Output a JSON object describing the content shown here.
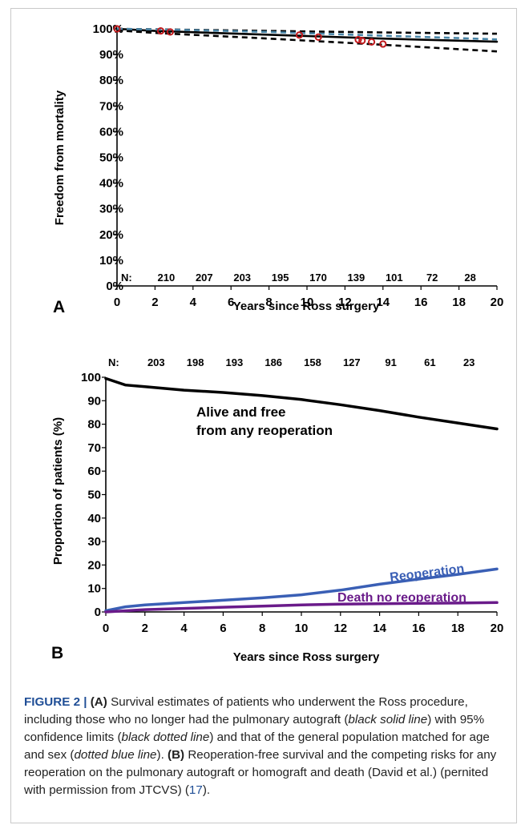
{
  "chart_data": [
    {
      "type": "line",
      "panel_label": "A",
      "xlabel": "Years since Ross surgery",
      "ylabel": "Freedom from mortality",
      "xlim": [
        0,
        20
      ],
      "ylim": [
        0,
        100
      ],
      "x_ticks": [
        "0",
        "2",
        "4",
        "6",
        "8",
        "10",
        "12",
        "14",
        "16",
        "18",
        "20"
      ],
      "y_ticks": [
        "0%",
        "10%",
        "20%",
        "30%",
        "40%",
        "50%",
        "60%",
        "70%",
        "80%",
        "90%",
        "100%"
      ],
      "at_risk_label": "N:",
      "at_risk": [
        {
          "x": 2,
          "n": "210"
        },
        {
          "x": 4,
          "n": "207"
        },
        {
          "x": 6,
          "n": "203"
        },
        {
          "x": 8,
          "n": "195"
        },
        {
          "x": 10,
          "n": "170"
        },
        {
          "x": 12,
          "n": "139"
        },
        {
          "x": 14,
          "n": "101"
        },
        {
          "x": 16,
          "n": "72"
        },
        {
          "x": 18,
          "n": "28"
        }
      ],
      "series": [
        {
          "style": "black-solid",
          "color": "#000000",
          "points": [
            [
              0,
              100
            ],
            [
              2,
              99.2
            ],
            [
              6,
              98.2
            ],
            [
              10,
              97.2
            ],
            [
              14,
              96.2
            ],
            [
              20,
              95.0
            ]
          ]
        },
        {
          "style": "black-dotted-upper",
          "color": "#000000",
          "points": [
            [
              0,
              100
            ],
            [
              2,
              99.8
            ],
            [
              8,
              99.2
            ],
            [
              14,
              98.6
            ],
            [
              20,
              98.1
            ]
          ]
        },
        {
          "style": "black-dotted-lower",
          "color": "#000000",
          "points": [
            [
              0,
              99.4
            ],
            [
              2,
              98.4
            ],
            [
              8,
              96.2
            ],
            [
              14,
              93.8
            ],
            [
              20,
              91.2
            ]
          ]
        },
        {
          "style": "blue-dotted",
          "color": "#4a86a8",
          "points": [
            [
              0,
              100
            ],
            [
              4,
              99.5
            ],
            [
              8,
              98.8
            ],
            [
              12,
              97.8
            ],
            [
              16,
              96.9
            ],
            [
              20,
              95.9
            ]
          ]
        }
      ],
      "markers": [
        [
          0,
          100
        ],
        [
          2.3,
          99.2
        ],
        [
          2.8,
          98.8
        ],
        [
          9.6,
          97.6
        ],
        [
          10.6,
          96.8
        ],
        [
          12.7,
          95.8
        ],
        [
          12.9,
          95.4
        ],
        [
          13.4,
          94.9
        ],
        [
          14.0,
          94.1
        ]
      ],
      "marker_color": "#c0191c"
    },
    {
      "type": "line",
      "panel_label": "B",
      "xlabel": "Years since Ross surgery",
      "ylabel": "Proportion of patients (%)",
      "xlim": [
        0,
        20
      ],
      "ylim": [
        0,
        100
      ],
      "x_ticks": [
        "0",
        "2",
        "4",
        "6",
        "8",
        "10",
        "12",
        "14",
        "16",
        "18",
        "20"
      ],
      "y_ticks": [
        "0",
        "10",
        "20",
        "30",
        "40",
        "50",
        "60",
        "70",
        "80",
        "90",
        "100"
      ],
      "at_risk_label": "N:",
      "at_risk": [
        {
          "x": 2,
          "n": "203"
        },
        {
          "x": 4,
          "n": "198"
        },
        {
          "x": 6,
          "n": "193"
        },
        {
          "x": 8,
          "n": "186"
        },
        {
          "x": 10,
          "n": "158"
        },
        {
          "x": 12,
          "n": "127"
        },
        {
          "x": 14,
          "n": "91"
        },
        {
          "x": 16,
          "n": "61"
        },
        {
          "x": 18,
          "n": "23"
        }
      ],
      "series": [
        {
          "name": "Alive and free from any reoperation",
          "color": "#000000",
          "points": [
            [
              0,
              99.5
            ],
            [
              1,
              96.7
            ],
            [
              2,
              96
            ],
            [
              4,
              94.5
            ],
            [
              6,
              93.5
            ],
            [
              8,
              92.2
            ],
            [
              10,
              90.5
            ],
            [
              12,
              88.3
            ],
            [
              14,
              85.8
            ],
            [
              16,
              83
            ],
            [
              18,
              80.5
            ],
            [
              20,
              78
            ]
          ]
        },
        {
          "name": "Reoperation",
          "color": "#3a5fb5",
          "points": [
            [
              0,
              0.5
            ],
            [
              1,
              2.2
            ],
            [
              2,
              3
            ],
            [
              4,
              4
            ],
            [
              6,
              5
            ],
            [
              8,
              6
            ],
            [
              10,
              7.3
            ],
            [
              12,
              9.3
            ],
            [
              14,
              11.8
            ],
            [
              16,
              14
            ],
            [
              18,
              16
            ],
            [
              20,
              18.3
            ]
          ]
        },
        {
          "name": "Death no reoperation",
          "color": "#6a1b8a",
          "points": [
            [
              0,
              0
            ],
            [
              2,
              1
            ],
            [
              4,
              1.5
            ],
            [
              6,
              2
            ],
            [
              8,
              2.5
            ],
            [
              10,
              3
            ],
            [
              12,
              3.3
            ],
            [
              14,
              3.5
            ],
            [
              16,
              3.7
            ],
            [
              18,
              3.8
            ],
            [
              20,
              4
            ]
          ]
        }
      ],
      "annotations": {
        "alive_line1": "Alive and free",
        "alive_line2": "from any reoperation",
        "reoperation": "Reoperation",
        "death": "Death no reoperation"
      }
    }
  ],
  "caption": {
    "figure_label": "FIGURE 2 |",
    "a_label": "(A)",
    "part1": " Survival estimates of patients who underwent the Ross procedure, including those who no longer had the pulmonary autograft (",
    "i1": "black solid line",
    "part2": ") with 95% confidence limits (",
    "i2": "black dotted line",
    "part3": ") and that of the general population matched for age and sex (",
    "i3": "dotted blue line",
    "part4": "). ",
    "b_label": "(B)",
    "part5": " Reoperation-free survival and the competing risks for any reoperation on the pulmonary autograft or homograft and death (David et al.) (pernited with permission from JTCVS) (",
    "ref": "17",
    "part6": ")."
  }
}
